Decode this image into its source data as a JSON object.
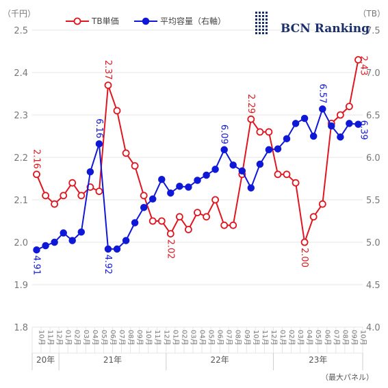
{
  "brand": {
    "name": "BCN Ranking",
    "logo_icon": "bcn-grid-logo-icon",
    "color": "#1a2f6b"
  },
  "colors": {
    "tb_price": "#e0151f",
    "avg_capacity": "#1018d8",
    "grid": "#e6e6e6",
    "axis_text": "#777777"
  },
  "note": "（最大パネル）",
  "chart_data": {
    "type": "line",
    "title": "",
    "left_axis": {
      "unit": "（千円）",
      "ylim": [
        1.8,
        2.5
      ],
      "ticks": [
        "1.8",
        "1.9",
        "2.0",
        "2.1",
        "2.2",
        "2.3",
        "2.4",
        "2.5"
      ]
    },
    "right_axis": {
      "unit": "（TB）",
      "ylim": [
        4.0,
        7.5
      ],
      "ticks": [
        "4.0",
        "4.5",
        "5.0",
        "5.5",
        "6.0",
        "6.5",
        "7.0",
        "7.5"
      ]
    },
    "grid": true,
    "legend_position": "top",
    "months": [
      "10月",
      "11月",
      "12月",
      "01月",
      "02月",
      "03月",
      "04月",
      "05月",
      "06月",
      "07月",
      "08月",
      "09月",
      "10月",
      "11月",
      "12月",
      "01月",
      "02月",
      "03月",
      "04月",
      "05月",
      "06月",
      "07月",
      "08月",
      "09月",
      "10月",
      "11月",
      "12月",
      "01月",
      "02月",
      "03月",
      "04月",
      "05月",
      "06月",
      "07月",
      "08月",
      "09月",
      "10月"
    ],
    "years": [
      {
        "label": "20年",
        "count": 3
      },
      {
        "label": "21年",
        "count": 12
      },
      {
        "label": "22年",
        "count": 12
      },
      {
        "label": "23年",
        "count": 10
      }
    ],
    "series": [
      {
        "name": "TB単価",
        "axis": "left",
        "marker": "hollow",
        "values": [
          2.16,
          2.11,
          2.09,
          2.11,
          2.14,
          2.11,
          2.13,
          2.12,
          2.37,
          2.31,
          2.21,
          2.18,
          2.11,
          2.05,
          2.05,
          2.02,
          2.06,
          2.03,
          2.07,
          2.06,
          2.1,
          2.04,
          2.04,
          2.16,
          2.29,
          2.26,
          2.26,
          2.16,
          2.16,
          2.14,
          2.0,
          2.06,
          2.09,
          2.28,
          2.3,
          2.32,
          2.43
        ],
        "labels": [
          {
            "index": 0,
            "text": "2.16"
          },
          {
            "index": 8,
            "text": "2.37"
          },
          {
            "index": 15,
            "text": "2.02"
          },
          {
            "index": 24,
            "text": "2.29"
          },
          {
            "index": 30,
            "text": "2.00"
          },
          {
            "index": 36,
            "text": "2.43"
          }
        ]
      },
      {
        "name": "平均容量（右軸）",
        "axis": "right",
        "marker": "filled",
        "values": [
          4.91,
          4.96,
          5.0,
          5.11,
          5.02,
          5.12,
          5.83,
          6.16,
          4.92,
          4.92,
          5.02,
          5.23,
          5.41,
          5.51,
          5.74,
          5.58,
          5.66,
          5.65,
          5.73,
          5.79,
          5.86,
          6.09,
          5.91,
          5.84,
          5.64,
          5.92,
          6.09,
          6.1,
          6.22,
          6.4,
          6.46,
          6.25,
          6.57,
          6.37,
          6.24,
          6.4,
          6.39
        ],
        "labels": [
          {
            "index": 0,
            "text": "4.91"
          },
          {
            "index": 7,
            "text": "6.16"
          },
          {
            "index": 8,
            "text": "4.92"
          },
          {
            "index": 21,
            "text": "6.09"
          },
          {
            "index": 32,
            "text": "6.57"
          },
          {
            "index": 36,
            "text": "6.39"
          }
        ]
      }
    ]
  }
}
